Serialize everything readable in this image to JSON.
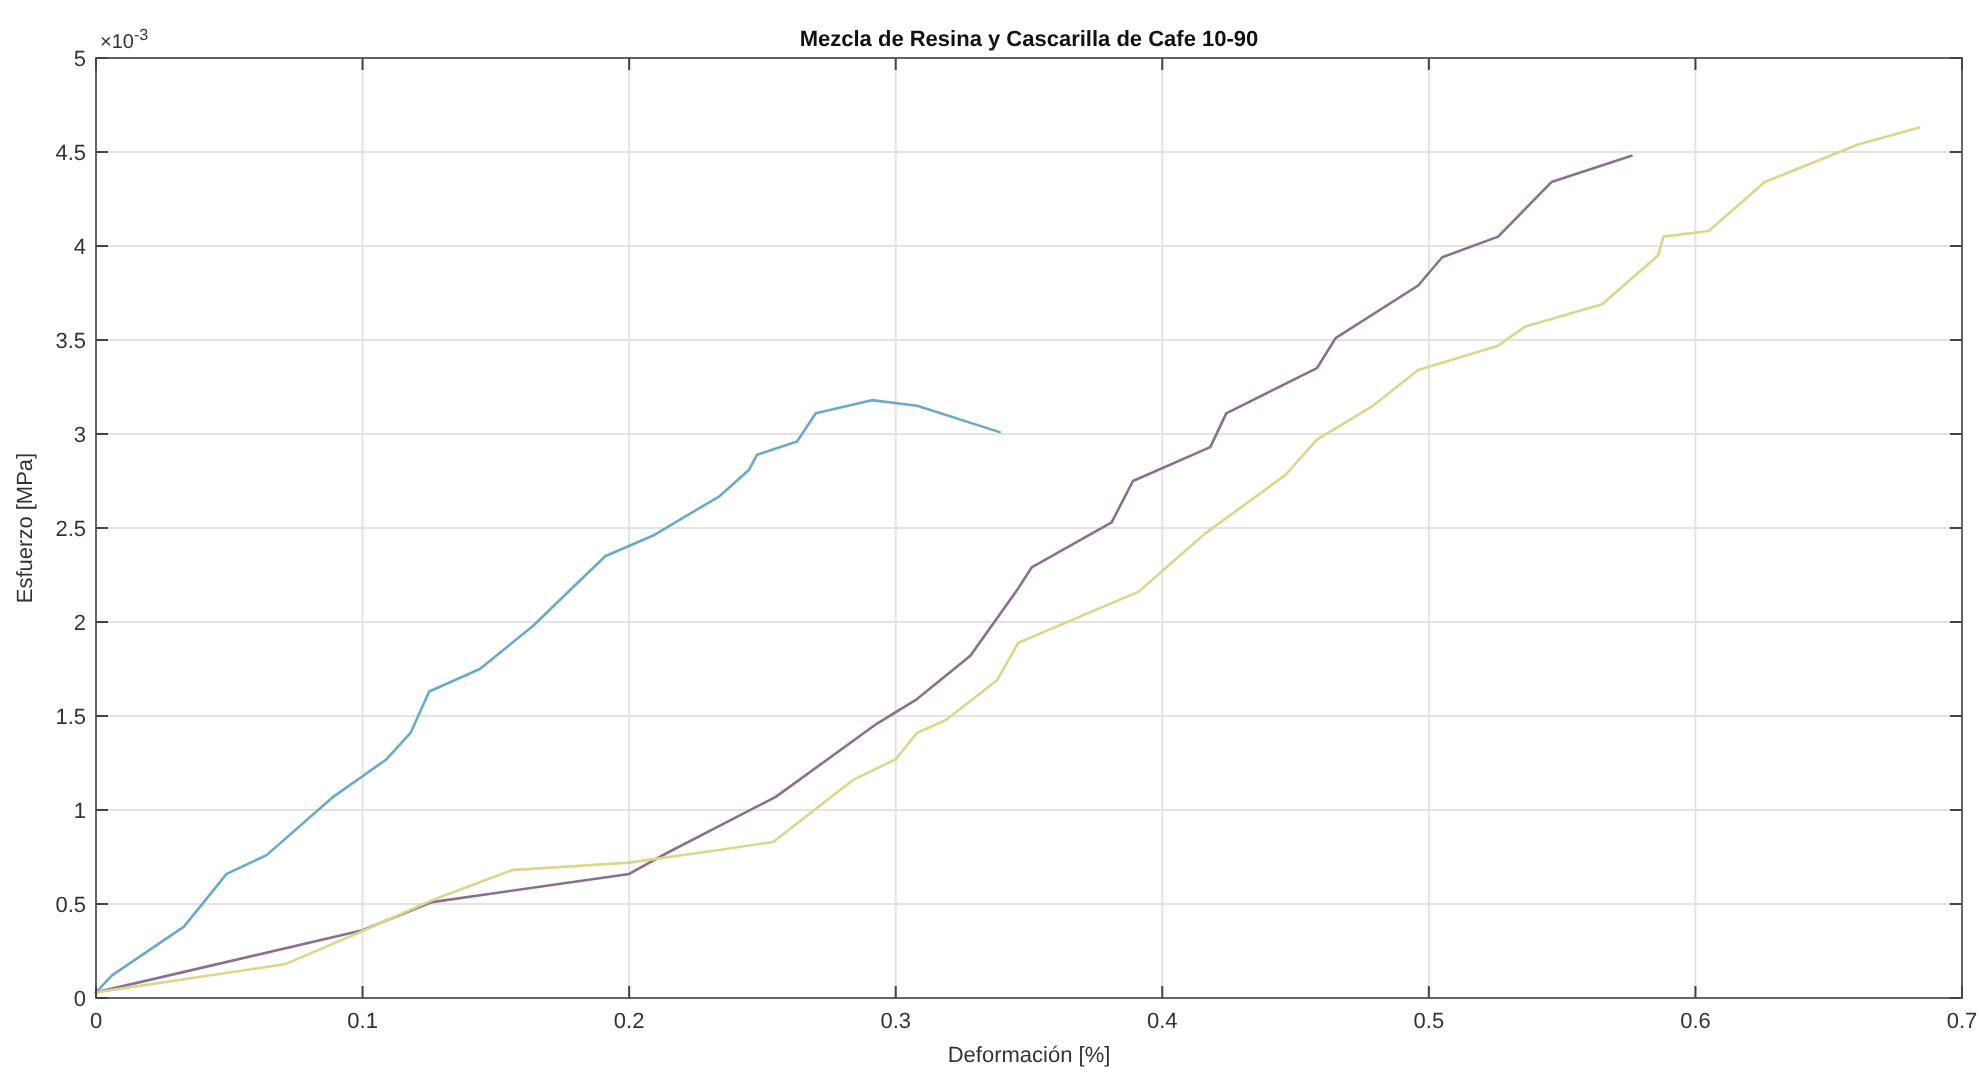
{
  "chart_data": {
    "type": "line",
    "title": "Mezcla de Resina y Cascarilla de Cafe 10-90",
    "xlabel": "Deformación [%]",
    "ylabel": "Esfuerzo [MPa]",
    "annotations": [
      "×10$^{-3}$"
    ],
    "xlim": [
      0,
      0.7
    ],
    "xticks": [
      0,
      0.1,
      0.2,
      0.3,
      0.4,
      0.5,
      0.6,
      0.7
    ],
    "ylim": [
      0,
      5
    ],
    "yticks": [
      0,
      0.5,
      1,
      1.5,
      2,
      2.5,
      3,
      3.5,
      4,
      4.5,
      5
    ],
    "grid": true,
    "series": [
      {
        "color": "#6aaac8",
        "x": [
          0,
          0.006,
          0.033,
          0.049,
          0.064,
          0.089,
          0.109,
          0.118,
          0.125,
          0.144,
          0.164,
          0.191,
          0.209,
          0.234,
          0.245,
          0.248,
          0.263,
          0.27,
          0.291,
          0.308,
          0.339
        ],
        "values": [
          0.03,
          0.12,
          0.38,
          0.66,
          0.76,
          1.07,
          1.27,
          1.41,
          1.63,
          1.75,
          1.98,
          2.35,
          2.46,
          2.67,
          2.81,
          2.89,
          2.96,
          3.11,
          3.18,
          3.15,
          3.01
        ]
      },
      {
        "color": "#8a6f8f",
        "x": [
          0,
          0.1,
          0.126,
          0.2,
          0.214,
          0.255,
          0.293,
          0.308,
          0.328,
          0.346,
          0.351,
          0.381,
          0.389,
          0.418,
          0.424,
          0.458,
          0.465,
          0.496,
          0.505,
          0.526,
          0.546,
          0.576
        ],
        "values": [
          0.03,
          0.36,
          0.51,
          0.66,
          0.77,
          1.07,
          1.46,
          1.59,
          1.82,
          2.18,
          2.29,
          2.53,
          2.75,
          2.93,
          3.11,
          3.35,
          3.51,
          3.79,
          3.94,
          4.05,
          4.34,
          4.48
        ]
      },
      {
        "color": "#dcd68c",
        "x": [
          0,
          0.071,
          0.099,
          0.126,
          0.156,
          0.2,
          0.235,
          0.254,
          0.284,
          0.3,
          0.308,
          0.319,
          0.338,
          0.346,
          0.391,
          0.416,
          0.446,
          0.458,
          0.479,
          0.496,
          0.526,
          0.536,
          0.565,
          0.586,
          0.588,
          0.605,
          0.626,
          0.661,
          0.684
        ],
        "values": [
          0.03,
          0.18,
          0.35,
          0.52,
          0.68,
          0.72,
          0.79,
          0.83,
          1.16,
          1.27,
          1.41,
          1.48,
          1.69,
          1.89,
          2.16,
          2.47,
          2.78,
          2.97,
          3.15,
          3.34,
          3.47,
          3.57,
          3.69,
          3.95,
          4.05,
          4.08,
          4.34,
          4.54,
          4.63
        ]
      }
    ]
  }
}
